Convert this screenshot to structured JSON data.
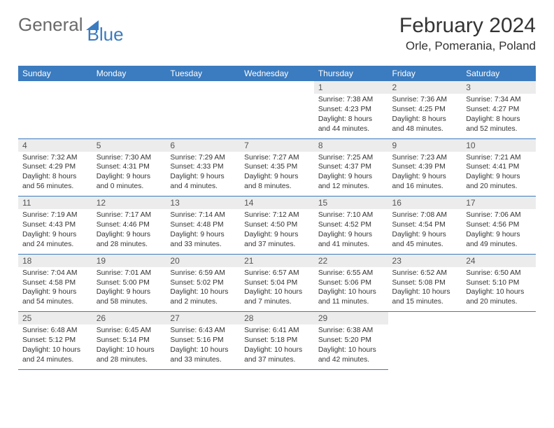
{
  "logo": {
    "part1": "General",
    "part2": "Blue"
  },
  "title": "February 2024",
  "location": "Orle, Pomerania, Poland",
  "colors": {
    "header_bg": "#3b7bbf",
    "header_text": "#ffffff",
    "daynum_bg": "#ececec",
    "border": "#3b7bbf",
    "logo_gray": "#6a6a6a",
    "logo_blue": "#3b7bbf",
    "body_text": "#333333"
  },
  "weekdays": [
    "Sunday",
    "Monday",
    "Tuesday",
    "Wednesday",
    "Thursday",
    "Friday",
    "Saturday"
  ],
  "weeks": [
    [
      null,
      null,
      null,
      null,
      {
        "n": "1",
        "sr": "Sunrise: 7:38 AM",
        "ss": "Sunset: 4:23 PM",
        "d1": "Daylight: 8 hours",
        "d2": "and 44 minutes."
      },
      {
        "n": "2",
        "sr": "Sunrise: 7:36 AM",
        "ss": "Sunset: 4:25 PM",
        "d1": "Daylight: 8 hours",
        "d2": "and 48 minutes."
      },
      {
        "n": "3",
        "sr": "Sunrise: 7:34 AM",
        "ss": "Sunset: 4:27 PM",
        "d1": "Daylight: 8 hours",
        "d2": "and 52 minutes."
      }
    ],
    [
      {
        "n": "4",
        "sr": "Sunrise: 7:32 AM",
        "ss": "Sunset: 4:29 PM",
        "d1": "Daylight: 8 hours",
        "d2": "and 56 minutes."
      },
      {
        "n": "5",
        "sr": "Sunrise: 7:30 AM",
        "ss": "Sunset: 4:31 PM",
        "d1": "Daylight: 9 hours",
        "d2": "and 0 minutes."
      },
      {
        "n": "6",
        "sr": "Sunrise: 7:29 AM",
        "ss": "Sunset: 4:33 PM",
        "d1": "Daylight: 9 hours",
        "d2": "and 4 minutes."
      },
      {
        "n": "7",
        "sr": "Sunrise: 7:27 AM",
        "ss": "Sunset: 4:35 PM",
        "d1": "Daylight: 9 hours",
        "d2": "and 8 minutes."
      },
      {
        "n": "8",
        "sr": "Sunrise: 7:25 AM",
        "ss": "Sunset: 4:37 PM",
        "d1": "Daylight: 9 hours",
        "d2": "and 12 minutes."
      },
      {
        "n": "9",
        "sr": "Sunrise: 7:23 AM",
        "ss": "Sunset: 4:39 PM",
        "d1": "Daylight: 9 hours",
        "d2": "and 16 minutes."
      },
      {
        "n": "10",
        "sr": "Sunrise: 7:21 AM",
        "ss": "Sunset: 4:41 PM",
        "d1": "Daylight: 9 hours",
        "d2": "and 20 minutes."
      }
    ],
    [
      {
        "n": "11",
        "sr": "Sunrise: 7:19 AM",
        "ss": "Sunset: 4:43 PM",
        "d1": "Daylight: 9 hours",
        "d2": "and 24 minutes."
      },
      {
        "n": "12",
        "sr": "Sunrise: 7:17 AM",
        "ss": "Sunset: 4:46 PM",
        "d1": "Daylight: 9 hours",
        "d2": "and 28 minutes."
      },
      {
        "n": "13",
        "sr": "Sunrise: 7:14 AM",
        "ss": "Sunset: 4:48 PM",
        "d1": "Daylight: 9 hours",
        "d2": "and 33 minutes."
      },
      {
        "n": "14",
        "sr": "Sunrise: 7:12 AM",
        "ss": "Sunset: 4:50 PM",
        "d1": "Daylight: 9 hours",
        "d2": "and 37 minutes."
      },
      {
        "n": "15",
        "sr": "Sunrise: 7:10 AM",
        "ss": "Sunset: 4:52 PM",
        "d1": "Daylight: 9 hours",
        "d2": "and 41 minutes."
      },
      {
        "n": "16",
        "sr": "Sunrise: 7:08 AM",
        "ss": "Sunset: 4:54 PM",
        "d1": "Daylight: 9 hours",
        "d2": "and 45 minutes."
      },
      {
        "n": "17",
        "sr": "Sunrise: 7:06 AM",
        "ss": "Sunset: 4:56 PM",
        "d1": "Daylight: 9 hours",
        "d2": "and 49 minutes."
      }
    ],
    [
      {
        "n": "18",
        "sr": "Sunrise: 7:04 AM",
        "ss": "Sunset: 4:58 PM",
        "d1": "Daylight: 9 hours",
        "d2": "and 54 minutes."
      },
      {
        "n": "19",
        "sr": "Sunrise: 7:01 AM",
        "ss": "Sunset: 5:00 PM",
        "d1": "Daylight: 9 hours",
        "d2": "and 58 minutes."
      },
      {
        "n": "20",
        "sr": "Sunrise: 6:59 AM",
        "ss": "Sunset: 5:02 PM",
        "d1": "Daylight: 10 hours",
        "d2": "and 2 minutes."
      },
      {
        "n": "21",
        "sr": "Sunrise: 6:57 AM",
        "ss": "Sunset: 5:04 PM",
        "d1": "Daylight: 10 hours",
        "d2": "and 7 minutes."
      },
      {
        "n": "22",
        "sr": "Sunrise: 6:55 AM",
        "ss": "Sunset: 5:06 PM",
        "d1": "Daylight: 10 hours",
        "d2": "and 11 minutes."
      },
      {
        "n": "23",
        "sr": "Sunrise: 6:52 AM",
        "ss": "Sunset: 5:08 PM",
        "d1": "Daylight: 10 hours",
        "d2": "and 15 minutes."
      },
      {
        "n": "24",
        "sr": "Sunrise: 6:50 AM",
        "ss": "Sunset: 5:10 PM",
        "d1": "Daylight: 10 hours",
        "d2": "and 20 minutes."
      }
    ],
    [
      {
        "n": "25",
        "sr": "Sunrise: 6:48 AM",
        "ss": "Sunset: 5:12 PM",
        "d1": "Daylight: 10 hours",
        "d2": "and 24 minutes."
      },
      {
        "n": "26",
        "sr": "Sunrise: 6:45 AM",
        "ss": "Sunset: 5:14 PM",
        "d1": "Daylight: 10 hours",
        "d2": "and 28 minutes."
      },
      {
        "n": "27",
        "sr": "Sunrise: 6:43 AM",
        "ss": "Sunset: 5:16 PM",
        "d1": "Daylight: 10 hours",
        "d2": "and 33 minutes."
      },
      {
        "n": "28",
        "sr": "Sunrise: 6:41 AM",
        "ss": "Sunset: 5:18 PM",
        "d1": "Daylight: 10 hours",
        "d2": "and 37 minutes."
      },
      {
        "n": "29",
        "sr": "Sunrise: 6:38 AM",
        "ss": "Sunset: 5:20 PM",
        "d1": "Daylight: 10 hours",
        "d2": "and 42 minutes."
      },
      null,
      null
    ]
  ]
}
